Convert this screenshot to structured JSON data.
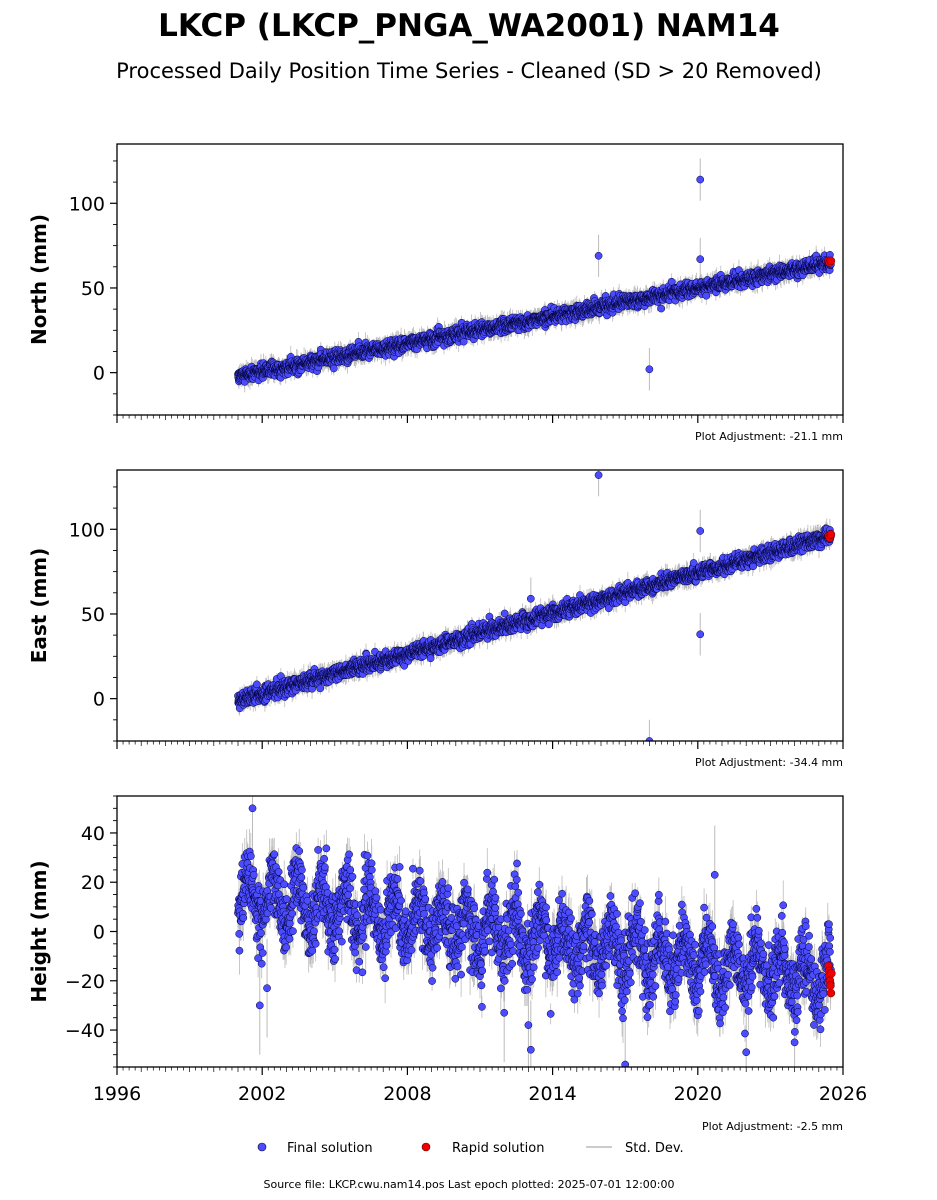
{
  "title": "LKCP (LKCP_PNGA_WA2001) NAM14",
  "subtitle": "Processed Daily Position Time Series - Cleaned (SD > 20 Removed)",
  "chart_data": [
    {
      "type": "scatter",
      "component": "north",
      "ylabel": "North (mm)",
      "xlim": [
        1996,
        2026
      ],
      "ylim": [
        -25,
        135
      ],
      "yticks": [
        0,
        50,
        100
      ],
      "adjustment": "Plot Adjustment: -21.1 mm",
      "trend": {
        "start": [
          2001.0,
          -2
        ],
        "end": [
          2025.5,
          65
        ]
      },
      "scatter_sd": 2.0,
      "std_dev_typical": 5,
      "outliers": [
        [
          2015.9,
          69
        ],
        [
          2018.0,
          2
        ],
        [
          2020.1,
          114
        ],
        [
          2020.1,
          67
        ]
      ],
      "rapid": [
        [
          2025.4,
          66
        ],
        [
          2025.45,
          65
        ],
        [
          2025.5,
          66
        ]
      ]
    },
    {
      "type": "scatter",
      "component": "east",
      "ylabel": "East (mm)",
      "xlim": [
        1996,
        2026
      ],
      "ylim": [
        -25,
        135
      ],
      "yticks": [
        0,
        50,
        100
      ],
      "adjustment": "Plot Adjustment: -34.4 mm",
      "trend": {
        "start": [
          2001.0,
          -1
        ],
        "end": [
          2025.5,
          96
        ]
      },
      "scatter_sd": 2.2,
      "std_dev_typical": 5,
      "outliers": [
        [
          2015.9,
          132
        ],
        [
          2018.0,
          -25
        ],
        [
          2020.1,
          99
        ],
        [
          2020.1,
          38
        ],
        [
          2013.1,
          59
        ]
      ],
      "rapid": [
        [
          2025.4,
          96
        ],
        [
          2025.45,
          95
        ],
        [
          2025.5,
          97
        ]
      ]
    },
    {
      "type": "scatter",
      "component": "height",
      "ylabel": "Height (mm)",
      "xlim": [
        1996,
        2026
      ],
      "ylim": [
        -55,
        55
      ],
      "yticks": [
        -40,
        -20,
        0,
        20,
        40
      ],
      "adjustment": "Plot Adjustment: -2.5 mm",
      "trend": {
        "start": [
          2001.0,
          15
        ],
        "end": [
          2025.5,
          -20
        ]
      },
      "seasonal_amplitude": 9,
      "scatter_sd": 7,
      "std_dev_typical": 8,
      "outliers": [
        [
          2001.6,
          50
        ],
        [
          2001.9,
          -30
        ],
        [
          2002.2,
          -23
        ],
        [
          2012.0,
          -33
        ],
        [
          2013.0,
          -38
        ],
        [
          2013.1,
          -48
        ],
        [
          2017.0,
          -54
        ],
        [
          2020.7,
          23
        ],
        [
          2022.0,
          -49
        ],
        [
          2024.0,
          -45
        ]
      ],
      "rapid": [
        [
          2025.4,
          -14
        ],
        [
          2025.42,
          -16
        ],
        [
          2025.44,
          -18
        ],
        [
          2025.46,
          -20
        ],
        [
          2025.48,
          -22
        ],
        [
          2025.5,
          -25
        ],
        [
          2025.52,
          -17
        ]
      ]
    }
  ],
  "xticks": [
    1996,
    2002,
    2008,
    2014,
    2020,
    2026
  ],
  "legend": {
    "final_label": "Final solution",
    "rapid_label": "Rapid solution",
    "sd_label": "Std. Dev."
  },
  "colors": {
    "final": "#4b4bff",
    "final_edge": "#000033",
    "rapid": "#ee0000",
    "sd": "#bbbbbb"
  },
  "footer": "Source file: LKCP.cwu.nam14.pos  Last epoch plotted: 2025-07-01 12:00:00"
}
